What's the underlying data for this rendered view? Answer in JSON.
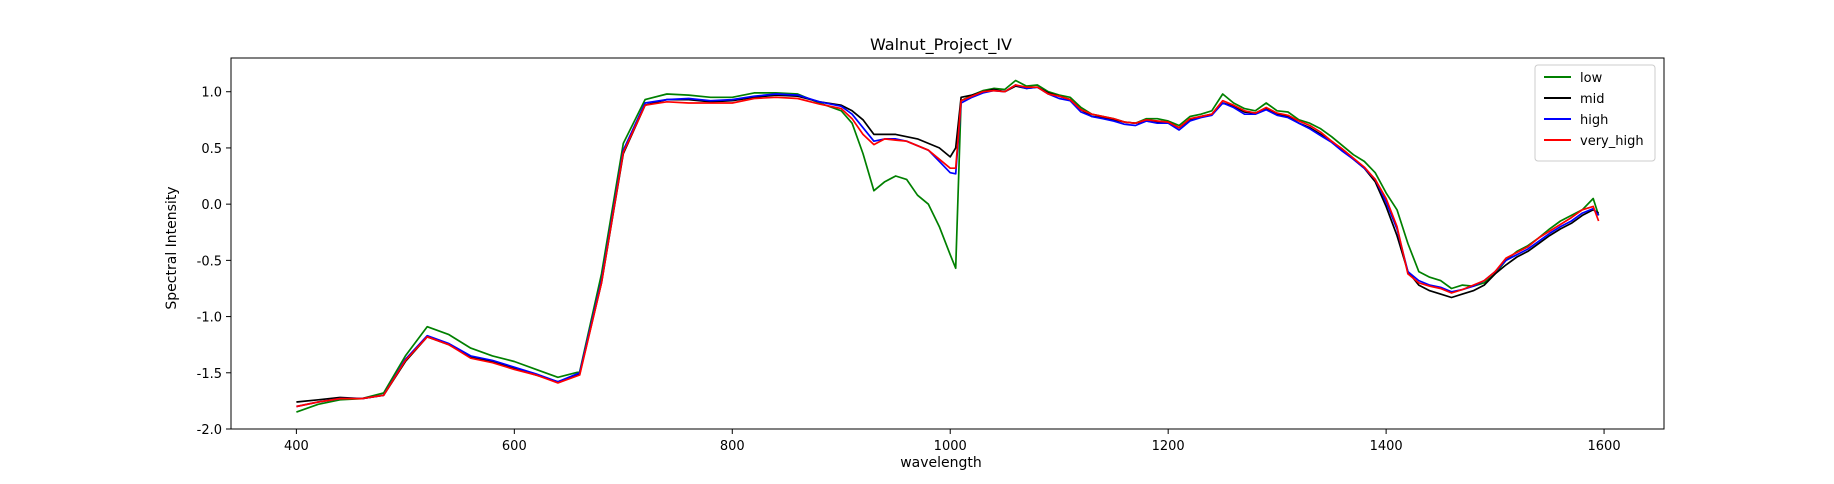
{
  "chart_data": {
    "type": "line",
    "title": "Walnut_Project_IV",
    "xlabel": "wavelength",
    "ylabel": "Spectral Intensity",
    "xlim": [
      340,
      1655
    ],
    "ylim": [
      -2.0,
      1.3
    ],
    "xticks": [
      400,
      600,
      800,
      1000,
      1200,
      1400,
      1600
    ],
    "yticks": [
      -2.0,
      -1.5,
      -1.0,
      -0.5,
      0.0,
      0.5,
      1.0
    ],
    "grid": false,
    "legend_position": "top-right",
    "series": [
      {
        "name": "low",
        "color": "#008000",
        "x": [
          400,
          420,
          440,
          460,
          480,
          500,
          520,
          540,
          560,
          580,
          600,
          620,
          640,
          660,
          680,
          700,
          720,
          740,
          760,
          780,
          800,
          820,
          840,
          860,
          880,
          900,
          910,
          920,
          930,
          940,
          950,
          960,
          970,
          980,
          990,
          1000,
          1005,
          1010,
          1020,
          1030,
          1040,
          1050,
          1060,
          1070,
          1080,
          1090,
          1100,
          1110,
          1120,
          1130,
          1140,
          1150,
          1160,
          1170,
          1180,
          1190,
          1200,
          1210,
          1220,
          1230,
          1240,
          1250,
          1260,
          1270,
          1280,
          1290,
          1300,
          1310,
          1320,
          1330,
          1340,
          1350,
          1360,
          1370,
          1380,
          1390,
          1400,
          1410,
          1420,
          1430,
          1440,
          1450,
          1460,
          1470,
          1480,
          1490,
          1500,
          1510,
          1520,
          1530,
          1540,
          1550,
          1560,
          1570,
          1580,
          1590,
          1595
        ],
        "values": [
          -1.85,
          -1.78,
          -1.74,
          -1.73,
          -1.68,
          -1.35,
          -1.09,
          -1.16,
          -1.28,
          -1.35,
          -1.4,
          -1.47,
          -1.54,
          -1.49,
          -0.62,
          0.54,
          0.93,
          0.98,
          0.97,
          0.95,
          0.95,
          0.99,
          0.99,
          0.98,
          0.9,
          0.83,
          0.72,
          0.45,
          0.12,
          0.2,
          0.25,
          0.22,
          0.08,
          0.0,
          -0.2,
          -0.45,
          -0.57,
          0.92,
          0.97,
          1.01,
          1.03,
          1.02,
          1.1,
          1.05,
          1.06,
          1.0,
          0.97,
          0.95,
          0.86,
          0.8,
          0.78,
          0.76,
          0.73,
          0.72,
          0.76,
          0.76,
          0.74,
          0.7,
          0.78,
          0.8,
          0.83,
          0.98,
          0.9,
          0.85,
          0.83,
          0.9,
          0.83,
          0.82,
          0.75,
          0.72,
          0.67,
          0.6,
          0.52,
          0.44,
          0.38,
          0.28,
          0.1,
          -0.05,
          -0.35,
          -0.6,
          -0.65,
          -0.68,
          -0.75,
          -0.72,
          -0.73,
          -0.7,
          -0.62,
          -0.5,
          -0.42,
          -0.37,
          -0.3,
          -0.22,
          -0.15,
          -0.1,
          -0.05,
          0.05,
          -0.1
        ]
      },
      {
        "name": "mid",
        "color": "#000000",
        "x": [
          400,
          420,
          440,
          460,
          480,
          500,
          520,
          540,
          560,
          580,
          600,
          620,
          640,
          660,
          680,
          700,
          720,
          740,
          760,
          780,
          800,
          820,
          840,
          860,
          880,
          900,
          910,
          920,
          930,
          940,
          950,
          960,
          970,
          980,
          990,
          1000,
          1005,
          1010,
          1020,
          1030,
          1040,
          1050,
          1060,
          1070,
          1080,
          1090,
          1100,
          1110,
          1120,
          1130,
          1140,
          1150,
          1160,
          1170,
          1180,
          1190,
          1200,
          1210,
          1220,
          1230,
          1240,
          1250,
          1260,
          1270,
          1280,
          1290,
          1300,
          1310,
          1320,
          1330,
          1340,
          1350,
          1360,
          1370,
          1380,
          1390,
          1400,
          1410,
          1420,
          1430,
          1440,
          1450,
          1460,
          1470,
          1480,
          1490,
          1500,
          1510,
          1520,
          1530,
          1540,
          1550,
          1560,
          1570,
          1580,
          1590,
          1595
        ],
        "values": [
          -1.76,
          -1.74,
          -1.72,
          -1.73,
          -1.7,
          -1.4,
          -1.18,
          -1.25,
          -1.36,
          -1.4,
          -1.46,
          -1.52,
          -1.58,
          -1.51,
          -0.7,
          0.45,
          0.88,
          0.93,
          0.93,
          0.91,
          0.92,
          0.95,
          0.97,
          0.96,
          0.91,
          0.88,
          0.83,
          0.75,
          0.62,
          0.62,
          0.62,
          0.6,
          0.58,
          0.54,
          0.5,
          0.42,
          0.5,
          0.95,
          0.97,
          1.0,
          1.02,
          1.0,
          1.05,
          1.03,
          1.04,
          0.99,
          0.96,
          0.93,
          0.84,
          0.78,
          0.77,
          0.75,
          0.73,
          0.72,
          0.74,
          0.73,
          0.73,
          0.68,
          0.75,
          0.78,
          0.8,
          0.9,
          0.87,
          0.82,
          0.81,
          0.85,
          0.8,
          0.78,
          0.72,
          0.68,
          0.62,
          0.56,
          0.48,
          0.4,
          0.32,
          0.2,
          -0.02,
          -0.28,
          -0.6,
          -0.72,
          -0.77,
          -0.8,
          -0.83,
          -0.8,
          -0.77,
          -0.72,
          -0.62,
          -0.54,
          -0.47,
          -0.42,
          -0.35,
          -0.28,
          -0.22,
          -0.17,
          -0.1,
          -0.05,
          -0.08
        ]
      },
      {
        "name": "high",
        "color": "#0000ff",
        "x": [
          400,
          420,
          440,
          460,
          480,
          500,
          520,
          540,
          560,
          580,
          600,
          620,
          640,
          660,
          680,
          700,
          720,
          740,
          760,
          780,
          800,
          820,
          840,
          860,
          880,
          900,
          910,
          920,
          930,
          940,
          950,
          960,
          970,
          980,
          990,
          1000,
          1005,
          1010,
          1020,
          1030,
          1040,
          1050,
          1060,
          1070,
          1080,
          1090,
          1100,
          1110,
          1120,
          1130,
          1140,
          1150,
          1160,
          1170,
          1180,
          1190,
          1200,
          1210,
          1220,
          1230,
          1240,
          1250,
          1260,
          1270,
          1280,
          1290,
          1300,
          1310,
          1320,
          1330,
          1340,
          1350,
          1360,
          1370,
          1380,
          1390,
          1400,
          1410,
          1420,
          1430,
          1440,
          1450,
          1460,
          1470,
          1480,
          1490,
          1500,
          1510,
          1520,
          1530,
          1540,
          1550,
          1560,
          1570,
          1580,
          1590,
          1595
        ],
        "values": [
          -1.8,
          -1.76,
          -1.73,
          -1.73,
          -1.7,
          -1.38,
          -1.17,
          -1.24,
          -1.35,
          -1.39,
          -1.45,
          -1.51,
          -1.58,
          -1.5,
          -0.68,
          0.48,
          0.9,
          0.93,
          0.94,
          0.92,
          0.93,
          0.96,
          0.98,
          0.97,
          0.91,
          0.87,
          0.8,
          0.68,
          0.56,
          0.58,
          0.58,
          0.56,
          0.52,
          0.48,
          0.38,
          0.28,
          0.27,
          0.9,
          0.95,
          0.99,
          1.01,
          1.0,
          1.06,
          1.03,
          1.04,
          0.98,
          0.94,
          0.92,
          0.82,
          0.78,
          0.76,
          0.74,
          0.71,
          0.7,
          0.74,
          0.72,
          0.72,
          0.66,
          0.74,
          0.77,
          0.79,
          0.9,
          0.86,
          0.8,
          0.8,
          0.84,
          0.79,
          0.77,
          0.72,
          0.67,
          0.61,
          0.55,
          0.47,
          0.4,
          0.32,
          0.22,
          0.02,
          -0.22,
          -0.6,
          -0.68,
          -0.72,
          -0.74,
          -0.78,
          -0.76,
          -0.73,
          -0.68,
          -0.6,
          -0.5,
          -0.45,
          -0.4,
          -0.33,
          -0.26,
          -0.2,
          -0.15,
          -0.08,
          -0.04,
          -0.1
        ]
      },
      {
        "name": "very_high",
        "color": "#ff0000",
        "x": [
          400,
          420,
          440,
          460,
          480,
          500,
          520,
          540,
          560,
          580,
          600,
          620,
          640,
          660,
          680,
          700,
          720,
          740,
          760,
          780,
          800,
          820,
          840,
          860,
          880,
          900,
          910,
          920,
          930,
          940,
          950,
          960,
          970,
          980,
          990,
          1000,
          1005,
          1010,
          1020,
          1030,
          1040,
          1050,
          1060,
          1070,
          1080,
          1090,
          1100,
          1110,
          1120,
          1130,
          1140,
          1150,
          1160,
          1170,
          1180,
          1190,
          1200,
          1210,
          1220,
          1230,
          1240,
          1250,
          1260,
          1270,
          1280,
          1290,
          1300,
          1310,
          1320,
          1330,
          1340,
          1350,
          1360,
          1370,
          1380,
          1390,
          1400,
          1410,
          1420,
          1430,
          1440,
          1450,
          1460,
          1470,
          1480,
          1490,
          1500,
          1510,
          1520,
          1530,
          1540,
          1550,
          1560,
          1570,
          1580,
          1590,
          1595
        ],
        "values": [
          -1.8,
          -1.76,
          -1.73,
          -1.73,
          -1.7,
          -1.39,
          -1.18,
          -1.25,
          -1.37,
          -1.41,
          -1.47,
          -1.52,
          -1.59,
          -1.52,
          -0.7,
          0.46,
          0.88,
          0.91,
          0.9,
          0.9,
          0.9,
          0.94,
          0.95,
          0.94,
          0.89,
          0.85,
          0.76,
          0.62,
          0.53,
          0.58,
          0.57,
          0.56,
          0.52,
          0.48,
          0.4,
          0.32,
          0.32,
          0.92,
          0.96,
          1.0,
          1.01,
          1.0,
          1.06,
          1.04,
          1.04,
          0.98,
          0.96,
          0.93,
          0.84,
          0.8,
          0.78,
          0.76,
          0.73,
          0.72,
          0.75,
          0.74,
          0.73,
          0.68,
          0.76,
          0.78,
          0.8,
          0.92,
          0.88,
          0.83,
          0.81,
          0.86,
          0.81,
          0.79,
          0.74,
          0.7,
          0.64,
          0.56,
          0.49,
          0.41,
          0.33,
          0.22,
          0.05,
          -0.2,
          -0.62,
          -0.7,
          -0.73,
          -0.75,
          -0.79,
          -0.76,
          -0.72,
          -0.68,
          -0.6,
          -0.48,
          -0.43,
          -0.38,
          -0.3,
          -0.24,
          -0.18,
          -0.12,
          -0.05,
          -0.02,
          -0.15
        ]
      }
    ]
  }
}
